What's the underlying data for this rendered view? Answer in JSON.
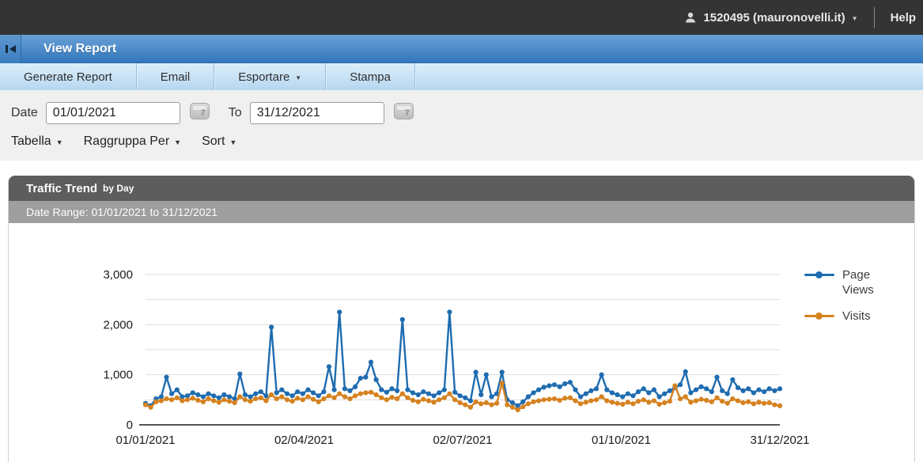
{
  "icons": {
    "caret_down": "▼",
    "calendar_glyph": "7"
  },
  "topbar": {
    "account": "1520495 (mauronovelli.it)",
    "help": "Help"
  },
  "titlebar": {
    "title": "View Report"
  },
  "toolbar": {
    "items": [
      "Generate Report",
      "Email",
      "Esportare",
      "Stampa"
    ]
  },
  "filters": {
    "date_label": "Date",
    "to_label": "To",
    "date_from": "01/01/2021",
    "date_to": "31/12/2021",
    "dropdowns": [
      "Tabella",
      "Raggruppa Per",
      "Sort"
    ]
  },
  "panel": {
    "title": "Traffic Trend",
    "subtitle": "by Day",
    "date_range": "Date Range: 01/01/2021 to 31/12/2021"
  },
  "colors": {
    "page_views": "#1f6cb0",
    "visits": "#d5821f",
    "grid": "#dedede",
    "axis": "#555555",
    "tick_text": "#1a1a1a"
  },
  "chart_data": {
    "type": "line",
    "title": "Traffic Trend by Day",
    "x_start": "01/01/2021",
    "x_end": "31/12/2021",
    "sample_interval_days": 3,
    "x_tick_labels": [
      "01/01/2021",
      "02/04/2021",
      "02/07/2021",
      "01/10/2021",
      "31/12/2021"
    ],
    "y_ticks": [
      0,
      1000,
      2000,
      3000
    ],
    "ylim": [
      0,
      3000
    ],
    "grid_interval": 500,
    "legend_position": "right",
    "series": [
      {
        "name": "Page Views",
        "color": "#1f6cb0",
        "values": [
          430,
          380,
          520,
          560,
          950,
          620,
          700,
          560,
          580,
          640,
          600,
          560,
          620,
          580,
          540,
          600,
          560,
          520,
          1015,
          600,
          560,
          620,
          660,
          580,
          1950,
          640,
          700,
          620,
          580,
          660,
          620,
          700,
          640,
          580,
          660,
          1160,
          700,
          2250,
          720,
          680,
          760,
          930,
          950,
          1250,
          900,
          700,
          650,
          720,
          680,
          2100,
          700,
          640,
          600,
          660,
          620,
          580,
          640,
          700,
          2250,
          650,
          580,
          540,
          480,
          1050,
          600,
          1000,
          560,
          620,
          1050,
          500,
          440,
          380,
          460,
          560,
          640,
          700,
          750,
          780,
          800,
          760,
          820,
          850,
          700,
          560,
          620,
          680,
          720,
          1000,
          700,
          640,
          600,
          560,
          620,
          580,
          660,
          720,
          640,
          700,
          560,
          620,
          680,
          740,
          800,
          1060,
          640,
          700,
          760,
          720,
          660,
          950,
          680,
          620,
          900,
          740,
          680,
          720,
          640,
          700,
          660,
          720,
          680,
          720
        ]
      },
      {
        "name": "Visits",
        "color": "#d5821f",
        "values": [
          400,
          350,
          460,
          480,
          520,
          500,
          540,
          480,
          500,
          530,
          490,
          460,
          520,
          480,
          450,
          500,
          470,
          440,
          560,
          500,
          470,
          520,
          540,
          480,
          600,
          520,
          560,
          500,
          470,
          530,
          500,
          560,
          510,
          460,
          520,
          580,
          540,
          620,
          560,
          520,
          580,
          620,
          640,
          650,
          600,
          540,
          500,
          550,
          520,
          620,
          540,
          490,
          460,
          510,
          480,
          450,
          500,
          540,
          620,
          500,
          440,
          400,
          350,
          460,
          420,
          440,
          400,
          430,
          830,
          400,
          350,
          300,
          360,
          420,
          460,
          480,
          500,
          510,
          520,
          490,
          530,
          540,
          480,
          420,
          450,
          480,
          500,
          560,
          480,
          450,
          430,
          410,
          450,
          420,
          470,
          500,
          450,
          480,
          410,
          440,
          470,
          780,
          520,
          560,
          450,
          480,
          510,
          490,
          460,
          540,
          470,
          430,
          520,
          480,
          440,
          460,
          420,
          450,
          430,
          440,
          400,
          380
        ]
      }
    ]
  }
}
